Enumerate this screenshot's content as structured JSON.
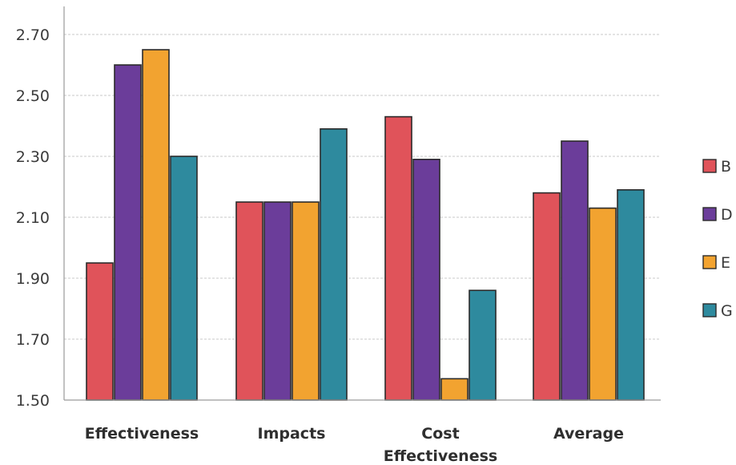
{
  "chart_data": {
    "type": "bar",
    "categories": [
      "Effectiveness",
      "Impacts",
      "Cost Effectiveness",
      "Average"
    ],
    "category_lines": [
      [
        "Effectiveness"
      ],
      [
        "Impacts"
      ],
      [
        "Cost",
        "Effectiveness"
      ],
      [
        "Average"
      ]
    ],
    "series": [
      {
        "name": "B",
        "color": "#e0535a",
        "values": [
          1.95,
          2.15,
          2.43,
          2.18
        ]
      },
      {
        "name": "D",
        "color": "#6b3d9a",
        "values": [
          2.6,
          2.15,
          2.29,
          2.35
        ]
      },
      {
        "name": "E",
        "color": "#f2a330",
        "values": [
          2.65,
          2.15,
          1.57,
          2.13
        ]
      },
      {
        "name": "G",
        "color": "#2e8a9e",
        "values": [
          2.3,
          2.39,
          1.86,
          2.19
        ]
      }
    ],
    "ylim": [
      1.5,
      2.7
    ],
    "yticks": [
      "1.50",
      "1.70",
      "1.90",
      "2.10",
      "2.30",
      "2.50",
      "2.70"
    ],
    "grid": true,
    "legend_position": "right",
    "title": "",
    "xlabel": "",
    "ylabel": ""
  }
}
